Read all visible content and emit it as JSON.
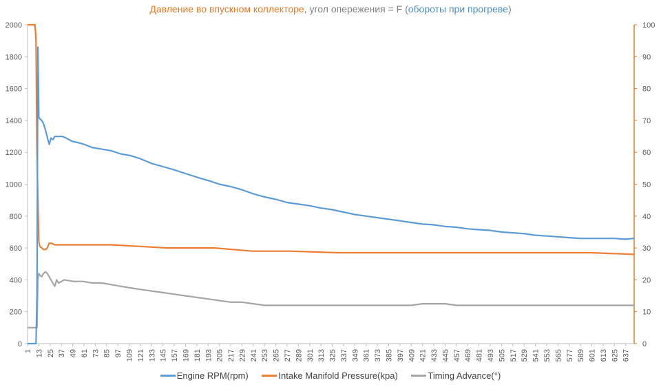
{
  "chart_data": {
    "type": "line",
    "title_parts": [
      {
        "text": "Давление во впускном коллекторе",
        "color": "#e07b28"
      },
      {
        "text": ", угол опережения = F (",
        "color": "#808080"
      },
      {
        "text": "обороты при прогреве",
        "color": "#4e8fc2"
      },
      {
        "text": ")",
        "color": "#808080"
      }
    ],
    "x_range": [
      1,
      646
    ],
    "x_ticks": [
      1,
      13,
      25,
      37,
      49,
      61,
      73,
      85,
      97,
      109,
      121,
      133,
      145,
      157,
      169,
      181,
      193,
      205,
      217,
      229,
      241,
      253,
      265,
      277,
      289,
      301,
      313,
      325,
      337,
      349,
      361,
      373,
      385,
      397,
      409,
      421,
      433,
      445,
      457,
      469,
      481,
      493,
      505,
      517,
      529,
      541,
      553,
      565,
      577,
      589,
      601,
      613,
      625,
      637
    ],
    "y_left": {
      "min": 0,
      "max": 2000,
      "ticks": [
        0,
        200,
        400,
        600,
        800,
        1000,
        1200,
        1400,
        1600,
        1800,
        2000
      ]
    },
    "y_right": {
      "min": 0,
      "max": 100,
      "ticks": [
        0,
        10,
        20,
        30,
        40,
        50,
        60,
        70,
        80,
        90,
        100
      ],
      "color": "#e07b28"
    },
    "grid": false,
    "legend_position": "bottom",
    "series": [
      {
        "name": "Engine RPM(rpm)",
        "axis": "left",
        "color": "#5b9bd5",
        "x": [
          1,
          9,
          10,
          11,
          12,
          13,
          14,
          16,
          18,
          20,
          24,
          26,
          28,
          30,
          34,
          38,
          42,
          48,
          55,
          61,
          70,
          80,
          90,
          100,
          110,
          121,
          133,
          145,
          157,
          170,
          183,
          195,
          205,
          217,
          229,
          241,
          253,
          265,
          277,
          289,
          301,
          313,
          325,
          337,
          349,
          361,
          373,
          385,
          397,
          409,
          421,
          433,
          445,
          457,
          469,
          481,
          493,
          505,
          517,
          529,
          541,
          553,
          565,
          577,
          589,
          601,
          613,
          625,
          637,
          646
        ],
        "y": [
          0,
          0,
          0,
          300,
          1860,
          1420,
          1410,
          1400,
          1380,
          1340,
          1250,
          1290,
          1280,
          1300,
          1300,
          1300,
          1290,
          1270,
          1260,
          1250,
          1230,
          1220,
          1210,
          1190,
          1180,
          1160,
          1130,
          1110,
          1090,
          1065,
          1040,
          1020,
          1000,
          985,
          965,
          940,
          920,
          905,
          885,
          875,
          865,
          850,
          840,
          825,
          810,
          800,
          790,
          780,
          770,
          760,
          750,
          745,
          735,
          730,
          720,
          715,
          710,
          700,
          695,
          690,
          680,
          675,
          670,
          665,
          660,
          660,
          660,
          660,
          655,
          660
        ]
      },
      {
        "name": "Intake Manifold Pressure(kpa)",
        "axis": "right",
        "color": "#ed7d31",
        "x": [
          1,
          9,
          10,
          11,
          12,
          13,
          14,
          16,
          18,
          20,
          22,
          24,
          26,
          30,
          60,
          90,
          120,
          150,
          200,
          240,
          280,
          330,
          380,
          430,
          470,
          510,
          560,
          600,
          646
        ],
        "y": [
          100,
          100,
          95,
          60,
          46,
          32,
          30.5,
          30,
          29.5,
          29.5,
          30,
          31.5,
          31.5,
          31,
          31,
          31,
          30.5,
          30,
          30,
          29,
          29,
          28.5,
          28.5,
          28.5,
          28.5,
          28.5,
          28.5,
          28.5,
          28
        ]
      },
      {
        "name": "Timing Advance(°)",
        "axis": "right",
        "color": "#a5a5a5",
        "x": [
          1,
          9,
          10,
          11,
          12,
          13,
          14,
          16,
          18,
          20,
          22,
          24,
          26,
          30,
          32,
          34,
          40,
          50,
          60,
          70,
          80,
          90,
          100,
          110,
          121,
          133,
          145,
          157,
          169,
          181,
          193,
          205,
          217,
          229,
          241,
          253,
          265,
          277,
          289,
          301,
          313,
          325,
          337,
          349,
          361,
          373,
          385,
          397,
          409,
          421,
          433,
          445,
          457,
          469,
          481,
          493,
          505,
          517,
          529,
          541,
          553,
          565,
          577,
          589,
          601,
          613,
          625,
          637,
          646
        ],
        "y": [
          5,
          5,
          5,
          5,
          20,
          22,
          21.5,
          21,
          22,
          22.5,
          22,
          21,
          20,
          18,
          20,
          19,
          20,
          19.5,
          19.5,
          19,
          19,
          18.5,
          18,
          17.5,
          17,
          16.5,
          16,
          15.5,
          15,
          14.5,
          14,
          13.5,
          13,
          13,
          12.5,
          12,
          12,
          12,
          12,
          12,
          12,
          12,
          12,
          12,
          12,
          12,
          12,
          12,
          12,
          12.5,
          12.5,
          12.5,
          12,
          12,
          12,
          12,
          12,
          12,
          12,
          12,
          12,
          12,
          12,
          12,
          12,
          12,
          12,
          12,
          12
        ]
      }
    ]
  }
}
